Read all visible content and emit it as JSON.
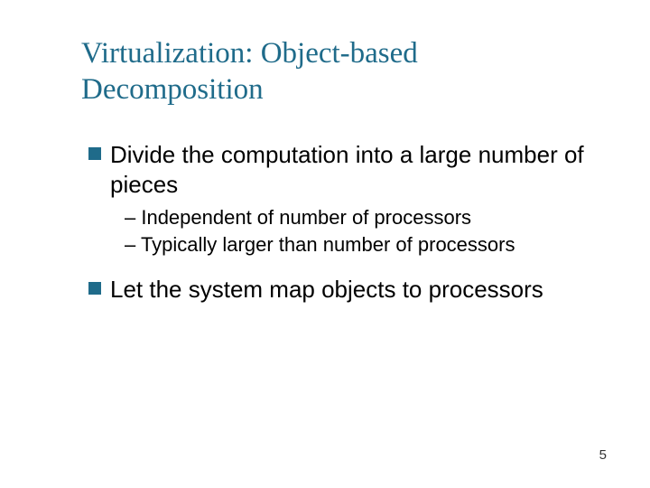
{
  "title_color": "#1f6b8a",
  "bullet_color": "#1f6b8a",
  "text_color": "#000000",
  "title": "Virtualization: Object-based Decomposition",
  "bullets": [
    {
      "text": "Divide the computation into a large number of pieces",
      "subs": [
        "– Independent of number of processors",
        "– Typically larger than number of processors"
      ]
    },
    {
      "text": "Let the system map objects  to processors",
      "subs": []
    }
  ],
  "page_number": "5"
}
